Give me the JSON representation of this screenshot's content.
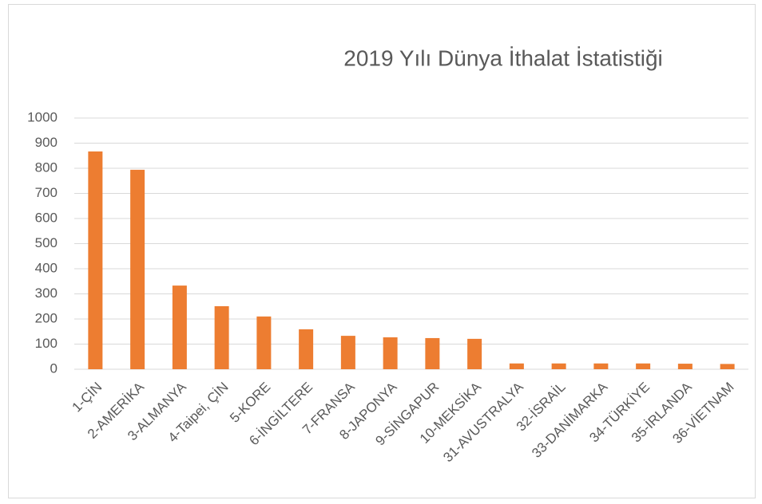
{
  "chart_data": {
    "type": "bar",
    "title": "2019 Yılı Dünya İthalat İstatistiği",
    "categories": [
      "1-ÇİN",
      "2-AMERİKA",
      "3-ALMANYA",
      "4-Taipei, ÇİN",
      "5-KORE",
      "6-İNGİLTERE",
      "7-FRANSA",
      "8-JAPONYA",
      "9-SİNGAPUR",
      "10-MEKSİKA",
      "31-AVUSTRALYA",
      "32-İSRAİL",
      "33-DANİMARKA",
      "34-TÜRKİYE",
      "35-İRLANDA",
      "36-VİETNAM"
    ],
    "values": [
      867,
      794,
      333,
      251,
      210,
      159,
      133,
      127,
      124,
      121,
      23,
      23,
      23,
      23,
      22,
      21
    ],
    "color": "#ed7d31",
    "ylim": [
      0,
      1000
    ],
    "yticks": [
      0,
      100,
      200,
      300,
      400,
      500,
      600,
      700,
      800,
      900,
      1000
    ],
    "grid": true
  }
}
